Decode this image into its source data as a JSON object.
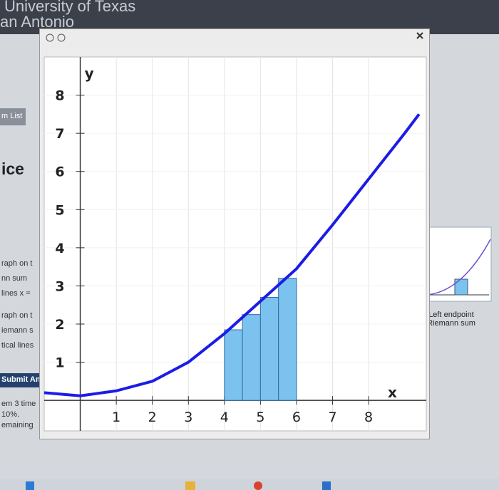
{
  "browser": {
    "site_title": "University of Texas",
    "site_subtitle": "an Antonio"
  },
  "left_panel": {
    "items": [
      "m List",
      "ice",
      "raph on t",
      "nn sum",
      "lines x =",
      "raph on t",
      "iemann s",
      "tical lines",
      "Submit An",
      "em 3 time",
      "10%.",
      "emaining"
    ]
  },
  "right_panel": {
    "caption": "Left endpoint Riemann sum"
  },
  "chart_data": {
    "type": "riemann",
    "x_label": "x",
    "y_label": "y",
    "xlim": [
      -1,
      9.6
    ],
    "ylim": [
      -0.8,
      9
    ],
    "xticks": [
      1,
      2,
      3,
      4,
      5,
      6,
      7,
      8
    ],
    "yticks": [
      1,
      2,
      3,
      4,
      5,
      6,
      7,
      8
    ],
    "grid": true,
    "curve": {
      "color": "#1c1ce6",
      "x": [
        -1,
        0,
        1,
        2,
        3,
        4,
        5,
        6,
        7,
        8,
        9,
        9.4
      ],
      "y": [
        0.2,
        0.12,
        0.25,
        0.5,
        1.0,
        1.75,
        2.6,
        3.45,
        4.6,
        5.8,
        7.0,
        7.5
      ]
    },
    "bars": {
      "color": "#7cc2ee",
      "x": [
        4,
        4.5,
        5,
        5.5
      ],
      "width": 0.5,
      "values": [
        1.85,
        2.25,
        2.7,
        3.2
      ]
    }
  }
}
